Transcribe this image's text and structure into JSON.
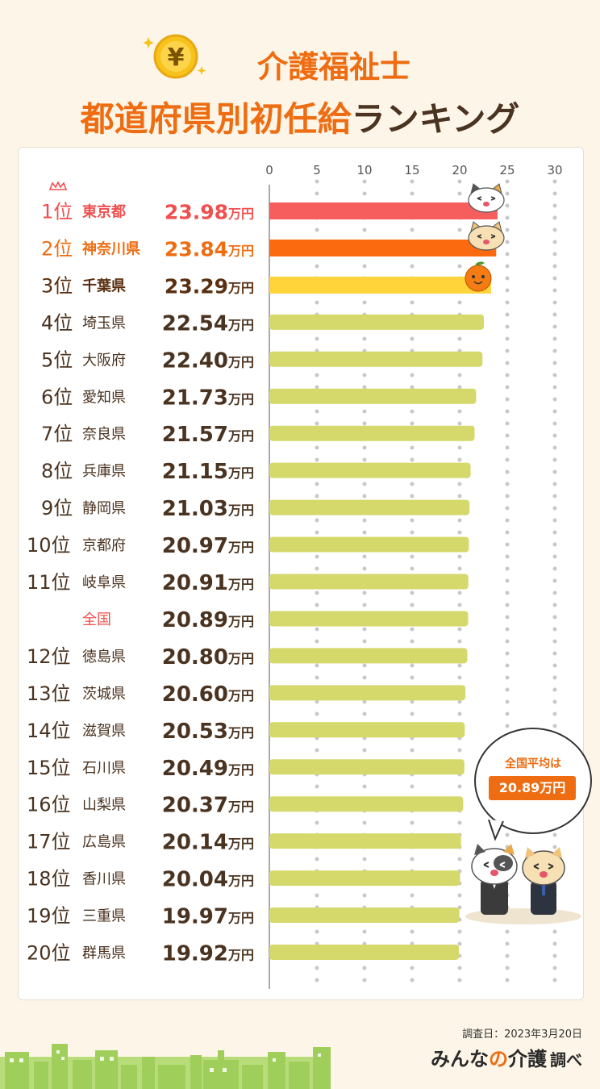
{
  "header": {
    "title_line1": "介護福祉士",
    "title_line2_main": "都道府県別初任給",
    "title_line2_accent": "ランキング"
  },
  "callout": {
    "title": "全国平均は",
    "value": "20.89万円"
  },
  "footer": {
    "survey_date": "調査日：2023年3月20日",
    "source_a": "みんな",
    "source_b": "の",
    "source_c": "介護",
    "source_d": "調べ"
  },
  "colors": {
    "rank1": "#f65e5e",
    "rank2": "#fb6a0e",
    "rank3": "#ffd33a",
    "other": "#d5d86a",
    "accent": "#ee6d13",
    "text": "#4a3320"
  },
  "chart_data": {
    "type": "bar",
    "orientation": "horizontal",
    "unit": "万円",
    "xlim": [
      0,
      30
    ],
    "xticks": [
      "0",
      "5",
      "10",
      "15",
      "20",
      "25",
      "30"
    ],
    "rows": [
      {
        "rank": "1位",
        "name": "東京都",
        "value": 23.98,
        "label": "23.98",
        "style": "rank1"
      },
      {
        "rank": "2位",
        "name": "神奈川県",
        "value": 23.84,
        "label": "23.84",
        "style": "rank2"
      },
      {
        "rank": "3位",
        "name": "千葉県",
        "value": 23.29,
        "label": "23.29",
        "style": "rank3"
      },
      {
        "rank": "4位",
        "name": "埼玉県",
        "value": 22.54,
        "label": "22.54",
        "style": "other"
      },
      {
        "rank": "5位",
        "name": "大阪府",
        "value": 22.4,
        "label": "22.40",
        "style": "other"
      },
      {
        "rank": "6位",
        "name": "愛知県",
        "value": 21.73,
        "label": "21.73",
        "style": "other"
      },
      {
        "rank": "7位",
        "name": "奈良県",
        "value": 21.57,
        "label": "21.57",
        "style": "other"
      },
      {
        "rank": "8位",
        "name": "兵庫県",
        "value": 21.15,
        "label": "21.15",
        "style": "other"
      },
      {
        "rank": "9位",
        "name": "静岡県",
        "value": 21.03,
        "label": "21.03",
        "style": "other"
      },
      {
        "rank": "10位",
        "name": "京都府",
        "value": 20.97,
        "label": "20.97",
        "style": "other"
      },
      {
        "rank": "11位",
        "name": "岐阜県",
        "value": 20.91,
        "label": "20.91",
        "style": "other"
      },
      {
        "rank": "",
        "name": "全国",
        "value": 20.89,
        "label": "20.89",
        "style": "national"
      },
      {
        "rank": "12位",
        "name": "徳島県",
        "value": 20.8,
        "label": "20.80",
        "style": "other"
      },
      {
        "rank": "13位",
        "name": "茨城県",
        "value": 20.6,
        "label": "20.60",
        "style": "other"
      },
      {
        "rank": "14位",
        "name": "滋賀県",
        "value": 20.53,
        "label": "20.53",
        "style": "other"
      },
      {
        "rank": "15位",
        "name": "石川県",
        "value": 20.49,
        "label": "20.49",
        "style": "other"
      },
      {
        "rank": "16位",
        "name": "山梨県",
        "value": 20.37,
        "label": "20.37",
        "style": "other"
      },
      {
        "rank": "17位",
        "name": "広島県",
        "value": 20.14,
        "label": "20.14",
        "style": "other"
      },
      {
        "rank": "18位",
        "name": "香川県",
        "value": 20.04,
        "label": "20.04",
        "style": "other"
      },
      {
        "rank": "19位",
        "name": "三重県",
        "value": 19.97,
        "label": "19.97",
        "style": "other"
      },
      {
        "rank": "20位",
        "name": "群馬県",
        "value": 19.92,
        "label": "19.92",
        "style": "other"
      }
    ]
  }
}
